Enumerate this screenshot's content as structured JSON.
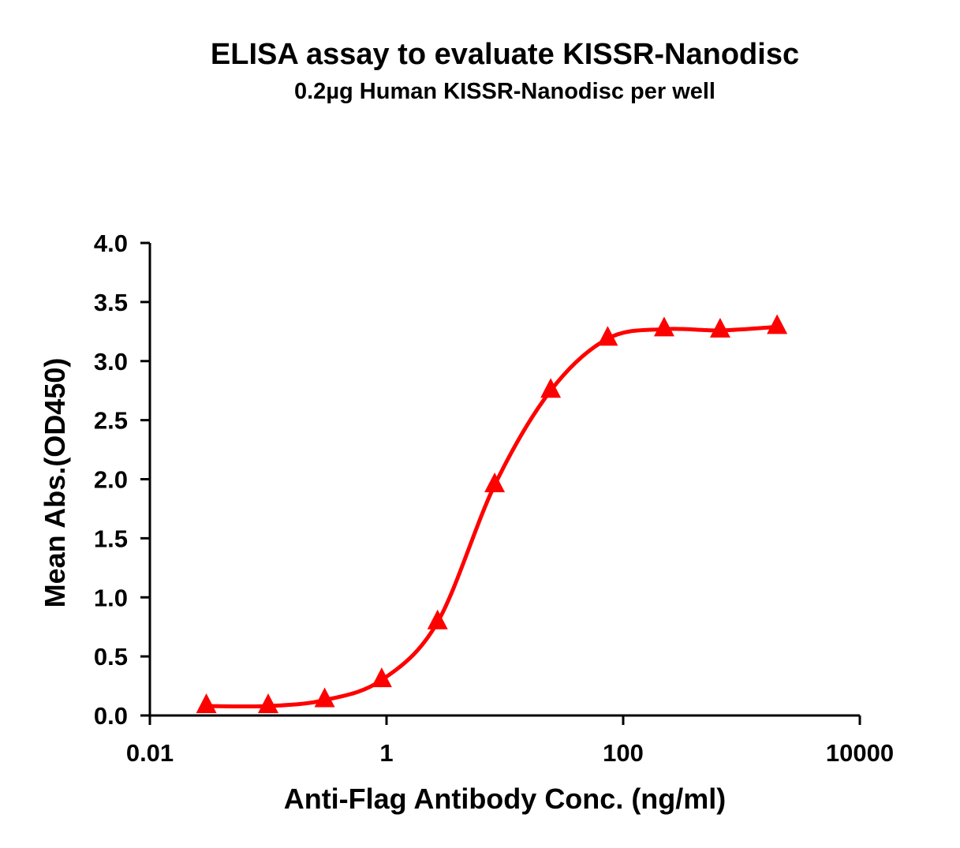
{
  "chart_data": {
    "type": "scatter",
    "title": "ELISA assay to evaluate KISSR-Nanodisc",
    "subtitle": "0.2µg Human KISSR-Nanodisc per well",
    "xlabel": "Anti-Flag Antibody Conc. (ng/ml)",
    "ylabel": "Mean Abs.(OD450)",
    "xscale": "log",
    "xlim": [
      0.01,
      10000
    ],
    "ylim": [
      0,
      4.0
    ],
    "xticks": [
      "0.01",
      "1",
      "100",
      "10000"
    ],
    "yticks": [
      "0.0",
      "0.5",
      "1.0",
      "1.5",
      "2.0",
      "2.5",
      "3.0",
      "3.5",
      "4.0"
    ],
    "grid": false,
    "marker": "triangle",
    "fit_curve": "sigmoidal",
    "color": "#ff0000",
    "series": [
      {
        "x": [
          0.03,
          0.1,
          0.3,
          0.91,
          2.7,
          8.2,
          24.4,
          74,
          222,
          660,
          2000
        ],
        "y": [
          0.08,
          0.08,
          0.13,
          0.3,
          0.79,
          1.95,
          2.75,
          3.19,
          3.27,
          3.26,
          3.29
        ]
      }
    ]
  }
}
